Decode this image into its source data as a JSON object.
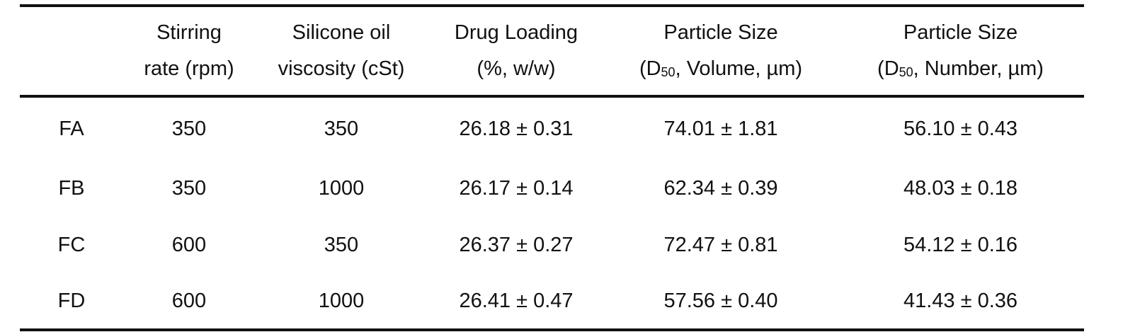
{
  "table": {
    "headers": [
      {
        "line1": "",
        "line2": ""
      },
      {
        "line1": "Stirring",
        "line2": "rate (rpm)"
      },
      {
        "line1": "Silicone oil",
        "line2": "viscosity (cSt)"
      },
      {
        "line1": "Drug Loading",
        "line2": "(%, w/w)"
      },
      {
        "line1": "Particle Size",
        "line2_pre": "(D",
        "line2_sub": "50",
        "line2_post": ", Volume, µm)"
      },
      {
        "line1": "Particle Size",
        "line2_pre": "(D",
        "line2_sub": "50",
        "line2_post": ", Number, µm)"
      }
    ],
    "rows": [
      {
        "formulation": "FA",
        "stirring_rate": "350",
        "viscosity": "350",
        "drug_loading": "26.18 ± 0.31",
        "d50_volume": "74.01 ± 1.81",
        "d50_number": "56.10 ± 0.43"
      },
      {
        "formulation": "FB",
        "stirring_rate": "350",
        "viscosity": "1000",
        "drug_loading": "26.17 ± 0.14",
        "d50_volume": "62.34 ± 0.39",
        "d50_number": "48.03 ± 0.18"
      },
      {
        "formulation": "FC",
        "stirring_rate": "600",
        "viscosity": "350",
        "drug_loading": "26.37 ± 0.27",
        "d50_volume": "72.47 ± 0.81",
        "d50_number": "54.12 ± 0.16"
      },
      {
        "formulation": "FD",
        "stirring_rate": "600",
        "viscosity": "1000",
        "drug_loading": "26.41 ± 0.47",
        "d50_volume": "57.56 ± 0.40",
        "d50_number": "41.43 ± 0.36"
      }
    ]
  }
}
